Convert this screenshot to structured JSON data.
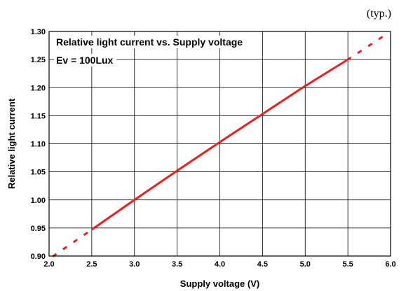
{
  "chart_data": {
    "type": "line",
    "title": "Relative light current vs. Supply voltage",
    "subtitle": "Ev = 100Lux",
    "corner_note": "(typ.)",
    "xlabel": "Supply voltage (V)",
    "ylabel": "Relative light current",
    "xlim": [
      2.0,
      6.0
    ],
    "ylim": [
      0.9,
      1.3
    ],
    "x_ticks": [
      2.0,
      2.5,
      3.0,
      3.5,
      4.0,
      4.5,
      5.0,
      5.5,
      6.0
    ],
    "x_tick_labels": [
      "2.0",
      "2.5",
      "3.0",
      "3.5",
      "4.0",
      "4.5",
      "5.0",
      "5.5",
      "6.0"
    ],
    "y_ticks": [
      0.9,
      0.95,
      1.0,
      1.05,
      1.1,
      1.15,
      1.2,
      1.25,
      1.3
    ],
    "y_tick_labels": [
      "0.90",
      "0.95",
      "1.00",
      "1.05",
      "1.10",
      "1.15",
      "1.20",
      "1.25",
      "1.30"
    ],
    "grid": true,
    "series": [
      {
        "style": "solid",
        "color": "#e8201f",
        "x": [
          2.5,
          3.0,
          3.5,
          4.0,
          4.5,
          5.0,
          5.5
        ],
        "y": [
          0.947,
          1.0,
          1.052,
          1.103,
          1.153,
          1.203,
          1.25
        ]
      },
      {
        "style": "dotted",
        "color": "#e8201f",
        "x": [
          2.05,
          2.5
        ],
        "y": [
          0.9,
          0.947
        ]
      },
      {
        "style": "dotted",
        "color": "#e8201f",
        "x": [
          5.5,
          5.93
        ],
        "y": [
          1.25,
          1.293
        ]
      }
    ]
  }
}
